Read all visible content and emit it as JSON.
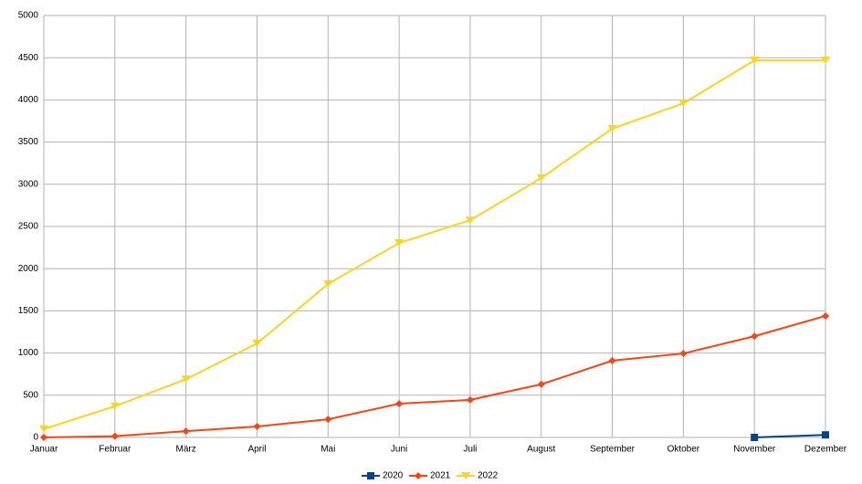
{
  "chart_data": {
    "type": "line",
    "categories": [
      "Januar",
      "Februar",
      "März",
      "April",
      "Mai",
      "Juni",
      "Juli",
      "August",
      "September",
      "Oktober",
      "November",
      "Dezember"
    ],
    "series": [
      {
        "name": "2020",
        "color": "#004586",
        "marker": "square",
        "values": [
          null,
          null,
          null,
          null,
          null,
          null,
          null,
          null,
          null,
          null,
          0,
          30
        ]
      },
      {
        "name": "2021",
        "color": "#ff420e",
        "marker": "diamond",
        "values": [
          0,
          15,
          75,
          130,
          215,
          400,
          445,
          630,
          910,
          995,
          1200,
          1440
        ]
      },
      {
        "name": "2022",
        "color": "#ffd320",
        "marker": "triangle-down",
        "values": [
          100,
          370,
          690,
          1115,
          1820,
          2305,
          2575,
          3075,
          3660,
          3960,
          4470,
          4470
        ]
      }
    ],
    "ylim": [
      0,
      5000
    ],
    "yticks": [
      0,
      500,
      1000,
      1500,
      2000,
      2500,
      3000,
      3500,
      4000,
      4500,
      5000
    ],
    "grid": true,
    "legend": "bottom"
  }
}
